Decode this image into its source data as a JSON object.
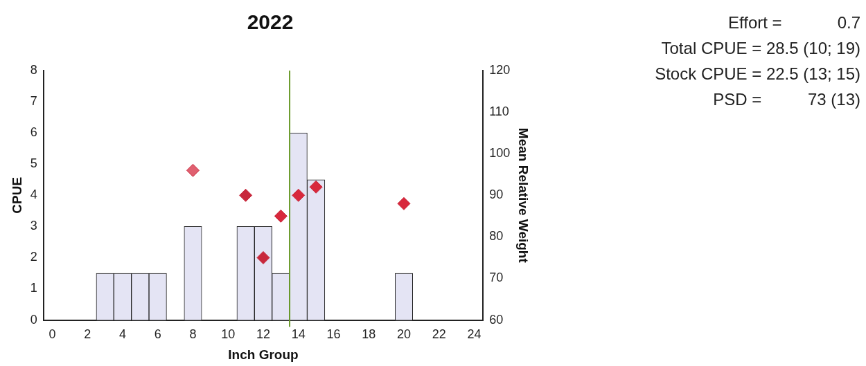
{
  "chart_data": {
    "type": "bar",
    "title": "2022",
    "xlabel": "Inch Group",
    "ylabel": "CPUE",
    "y2label": "Mean Relative Weight",
    "xlim": [
      -0.5,
      24.5
    ],
    "xticks": [
      0,
      2,
      4,
      6,
      8,
      10,
      12,
      14,
      16,
      18,
      20,
      22,
      24
    ],
    "ylim": [
      0,
      8
    ],
    "yticks": [
      0,
      1,
      2,
      3,
      4,
      5,
      6,
      7,
      8
    ],
    "y2lim": [
      60,
      120
    ],
    "y2ticks": [
      60,
      70,
      80,
      90,
      100,
      110,
      120
    ],
    "grid": false,
    "legend": false,
    "series": [
      {
        "color": "#e4e4f4",
        "x": [
          3,
          4,
          5,
          6,
          8,
          11,
          12,
          13,
          14,
          15,
          20
        ],
        "values": [
          1.5,
          1.5,
          1.5,
          1.5,
          3,
          3,
          3,
          1.5,
          6,
          4.5,
          1.5
        ]
      },
      {
        "type": "scatter",
        "axis": "y2",
        "marker": "diamond",
        "color": "#c8283c",
        "colors": [
          "#e06070",
          "#c8283c",
          "#c8283c",
          "#d8283c",
          "#d8283c",
          "#d8283c",
          "#d8283c"
        ],
        "x": [
          8,
          11,
          12,
          13,
          14,
          15,
          20
        ],
        "values": [
          96,
          90,
          75,
          85,
          90,
          92,
          88
        ]
      }
    ],
    "ref_lines": [
      {
        "axis": "x",
        "value": 13.5,
        "color": "#6a9a2a"
      }
    ],
    "annotations": [
      "Effort =            0.7",
      "Total CPUE = 28.5 (10; 19)",
      "Stock CPUE = 22.5 (13; 15)",
      "PSD =          73 (13)"
    ]
  }
}
